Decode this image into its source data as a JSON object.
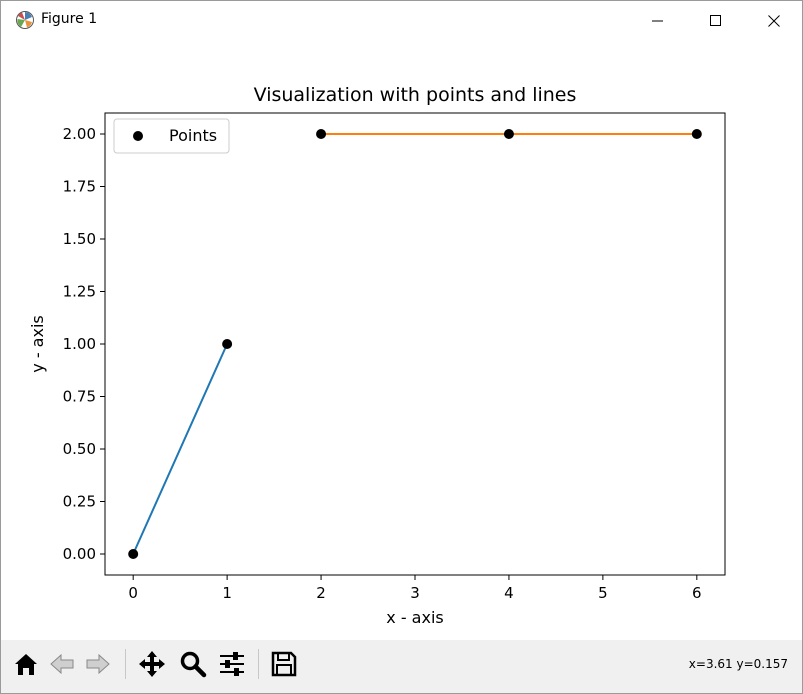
{
  "window": {
    "title": "Figure 1"
  },
  "status": {
    "coords": "x=3.61 y=0.157"
  },
  "toolbar": {
    "tools": [
      "home-icon",
      "back-arrow-icon",
      "forward-arrow-icon",
      "pan-icon",
      "zoom-icon",
      "configure-subplots-icon",
      "save-icon"
    ]
  },
  "chart_data": {
    "type": "line",
    "title": "Visualization with points and lines",
    "xlabel": "x - axis",
    "ylabel": "y - axis",
    "xlim": [
      -0.3,
      6.3
    ],
    "ylim": [
      -0.1,
      2.1
    ],
    "xticks": [
      0,
      1,
      2,
      3,
      4,
      5,
      6
    ],
    "yticks": [
      0.0,
      0.25,
      0.5,
      0.75,
      1.0,
      1.25,
      1.5,
      1.75,
      2.0
    ],
    "ytick_labels": [
      "0.00",
      "0.25",
      "0.50",
      "0.75",
      "1.00",
      "1.25",
      "1.50",
      "1.75",
      "2.00"
    ],
    "grid": false,
    "legend": {
      "position": "top-left",
      "entries": [
        "Points"
      ]
    },
    "scatter": {
      "name": "Points",
      "color": "#000000",
      "x": [
        0,
        1,
        2,
        4,
        6
      ],
      "y": [
        0,
        1,
        2,
        2,
        2
      ]
    },
    "lines": [
      {
        "color": "#1f77b4",
        "x": [
          0,
          1
        ],
        "y": [
          0,
          1
        ]
      },
      {
        "color": "#ff7f0e",
        "x": [
          2,
          4,
          6
        ],
        "y": [
          2,
          2,
          2
        ]
      }
    ]
  }
}
